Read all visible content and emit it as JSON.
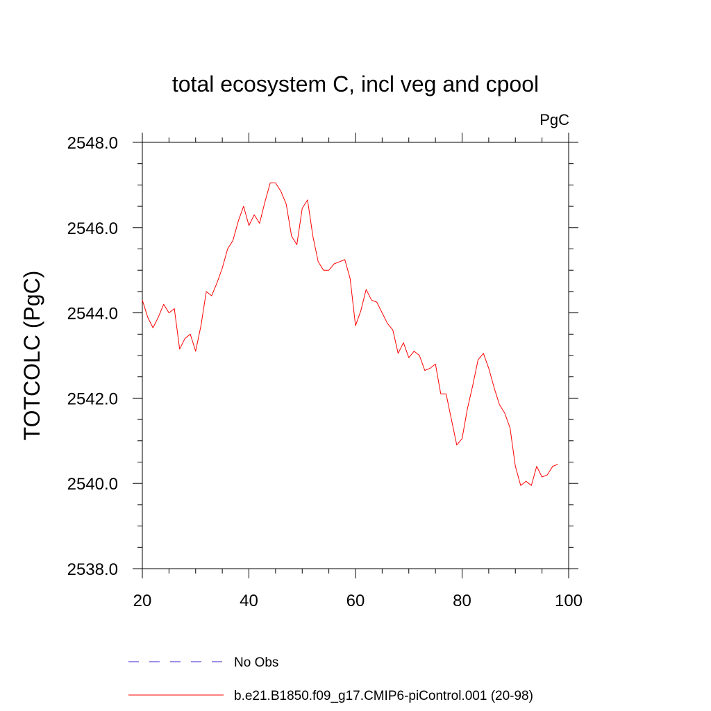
{
  "chart_data": {
    "type": "line",
    "title": "total ecosystem C, incl veg and cpool",
    "units_label": "PgC",
    "ylabel": "TOTCOLC  (PgC)",
    "xlabel": "",
    "xlim": [
      20,
      100
    ],
    "ylim": [
      2538.0,
      2548.0
    ],
    "xticks": [
      20,
      40,
      60,
      80,
      100
    ],
    "xtick_labels": [
      "20",
      "40",
      "60",
      "80",
      "100"
    ],
    "yticks": [
      2538.0,
      2540.0,
      2542.0,
      2544.0,
      2546.0,
      2548.0
    ],
    "ytick_labels": [
      "2538.0",
      "2540.0",
      "2542.0",
      "2544.0",
      "2546.0",
      "2548.0"
    ],
    "grid": false,
    "series": [
      {
        "name": "b.e21.B1850.f09_g17.CMIP6-piControl.001 (20-98)",
        "color": "#ff0000",
        "style": "solid",
        "x": [
          20,
          21,
          22,
          23,
          24,
          25,
          26,
          27,
          28,
          29,
          30,
          31,
          32,
          33,
          34,
          35,
          36,
          37,
          38,
          39,
          40,
          41,
          42,
          43,
          44,
          45,
          46,
          47,
          48,
          49,
          50,
          51,
          52,
          53,
          54,
          55,
          56,
          57,
          58,
          59,
          60,
          61,
          62,
          63,
          64,
          65,
          66,
          67,
          68,
          69,
          70,
          71,
          72,
          73,
          74,
          75,
          76,
          77,
          78,
          79,
          80,
          81,
          82,
          83,
          84,
          85,
          86,
          87,
          88,
          89,
          90,
          91,
          92,
          93,
          94,
          95,
          96,
          97,
          98
        ],
        "y": [
          2544.3,
          2543.9,
          2543.65,
          2543.9,
          2544.2,
          2544.0,
          2544.1,
          2543.15,
          2543.4,
          2543.5,
          2543.1,
          2543.7,
          2544.5,
          2544.4,
          2544.7,
          2545.05,
          2545.5,
          2545.7,
          2546.15,
          2546.5,
          2546.05,
          2546.3,
          2546.1,
          2546.6,
          2547.05,
          2547.05,
          2546.85,
          2546.55,
          2545.8,
          2545.6,
          2546.45,
          2546.65,
          2545.8,
          2545.2,
          2545.0,
          2545.0,
          2545.15,
          2545.2,
          2545.25,
          2544.8,
          2543.7,
          2544.05,
          2544.55,
          2544.3,
          2544.25,
          2544.0,
          2543.75,
          2543.6,
          2543.05,
          2543.3,
          2542.95,
          2543.1,
          2543.0,
          2542.65,
          2542.7,
          2542.8,
          2542.1,
          2542.1,
          2541.5,
          2540.9,
          2541.05,
          2541.75,
          2542.3,
          2542.9,
          2543.05,
          2542.7,
          2542.25,
          2541.85,
          2541.65,
          2541.3,
          2540.4,
          2539.95,
          2540.05,
          2539.95,
          2540.4,
          2540.15,
          2540.2,
          2540.4,
          2540.45
        ]
      },
      {
        "name": "No Obs",
        "color": "#3b1fd1",
        "style": "dashed",
        "x": [],
        "y": []
      }
    ],
    "legend": [
      "No Obs",
      "b.e21.B1850.f09_g17.CMIP6-piControl.001 (20-98)"
    ],
    "legend_position": "bottom"
  }
}
